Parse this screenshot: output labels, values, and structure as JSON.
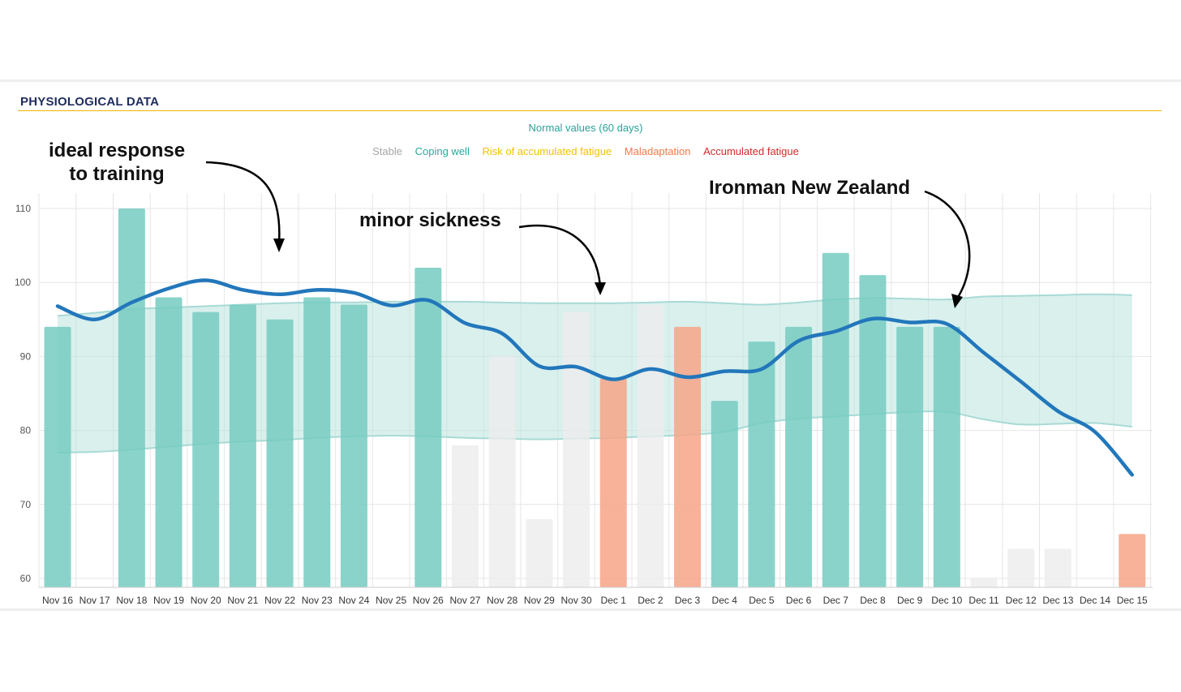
{
  "section": {
    "title": "PHYSIOLOGICAL DATA"
  },
  "normal_label": "Normal values (60 days)",
  "legend": [
    {
      "label": "Stable",
      "color": "#a6a6a6"
    },
    {
      "label": "Coping well",
      "color": "#2aaa9c"
    },
    {
      "label": "Risk of accumulated fatigue",
      "color": "#f2c200"
    },
    {
      "label": "Maladaptation",
      "color": "#ef7a48"
    },
    {
      "label": "Accumulated fatigue",
      "color": "#d42a2a"
    }
  ],
  "annotations": {
    "ideal_line1": "ideal response",
    "ideal_line2": "to training",
    "sickness": "minor sickness",
    "ironman": "Ironman New Zealand"
  },
  "colors": {
    "coping_well": "#76cbc1",
    "stable": "#ececec",
    "maladaptation": "#f6a487",
    "trend": "#2277bb",
    "band": "#b9e3df"
  },
  "chart_data": {
    "type": "bar",
    "categories": [
      "Nov 16",
      "Nov 17",
      "Nov 18",
      "Nov 19",
      "Nov 20",
      "Nov 21",
      "Nov 22",
      "Nov 23",
      "Nov 24",
      "Nov 25",
      "Nov 26",
      "Nov 27",
      "Nov 28",
      "Nov 29",
      "Nov 30",
      "Dec 1",
      "Dec 2",
      "Dec 3",
      "Dec 4",
      "Dec 5",
      "Dec 6",
      "Dec 7",
      "Dec 8",
      "Dec 9",
      "Dec 10",
      "Dec 11",
      "Dec 12",
      "Dec 13",
      "Dec 14",
      "Dec 15"
    ],
    "yticks": [
      60,
      70,
      80,
      90,
      100,
      110
    ],
    "ylim": [
      59,
      113
    ],
    "grid": true,
    "bars": [
      {
        "value": 94,
        "status": "coping_well"
      },
      {
        "value": null,
        "status": null
      },
      {
        "value": 110,
        "status": "coping_well"
      },
      {
        "value": 98,
        "status": "coping_well"
      },
      {
        "value": 96,
        "status": "coping_well"
      },
      {
        "value": 97,
        "status": "coping_well"
      },
      {
        "value": 95,
        "status": "coping_well"
      },
      {
        "value": 98,
        "status": "coping_well"
      },
      {
        "value": 97,
        "status": "coping_well"
      },
      {
        "value": null,
        "status": null
      },
      {
        "value": 102,
        "status": "coping_well"
      },
      {
        "value": 78,
        "status": "stable"
      },
      {
        "value": 90,
        "status": "stable"
      },
      {
        "value": 68,
        "status": "stable"
      },
      {
        "value": 96,
        "status": "stable"
      },
      {
        "value": 87,
        "status": "maladaptation"
      },
      {
        "value": 97,
        "status": "stable"
      },
      {
        "value": 94,
        "status": "maladaptation"
      },
      {
        "value": 84,
        "status": "coping_well"
      },
      {
        "value": 92,
        "status": "coping_well"
      },
      {
        "value": 94,
        "status": "coping_well"
      },
      {
        "value": 104,
        "status": "coping_well"
      },
      {
        "value": 101,
        "status": "coping_well"
      },
      {
        "value": 94,
        "status": "coping_well"
      },
      {
        "value": 94,
        "status": "coping_well"
      },
      {
        "value": 60,
        "status": "stable"
      },
      {
        "value": 64,
        "status": "stable"
      },
      {
        "value": 64,
        "status": "stable"
      },
      {
        "value": null,
        "status": null
      },
      {
        "value": 66,
        "status": "maladaptation"
      }
    ],
    "trend_line": [
      96.8,
      95.0,
      97.3,
      99.2,
      100.3,
      99.0,
      98.4,
      99.0,
      98.6,
      96.9,
      97.6,
      94.5,
      93.1,
      88.7,
      88.6,
      86.9,
      88.3,
      87.2,
      88.0,
      88.3,
      92.1,
      93.4,
      95.1,
      94.6,
      94.4,
      90.5,
      86.6,
      82.6,
      79.8,
      74.0
    ],
    "normal_band": {
      "upper": [
        95.5,
        95.9,
        96.4,
        96.6,
        96.8,
        97.0,
        97.2,
        97.3,
        97.3,
        97.4,
        97.4,
        97.4,
        97.3,
        97.2,
        97.2,
        97.2,
        97.3,
        97.4,
        97.2,
        97.0,
        97.3,
        97.7,
        97.9,
        97.8,
        97.7,
        98.1,
        98.2,
        98.3,
        98.4,
        98.3
      ],
      "lower": [
        77.0,
        77.1,
        77.4,
        77.8,
        78.2,
        78.5,
        78.7,
        79.0,
        79.2,
        79.3,
        79.2,
        79.0,
        78.9,
        78.8,
        78.9,
        79.0,
        79.2,
        79.4,
        79.8,
        81.0,
        81.6,
        81.9,
        82.2,
        82.5,
        82.5,
        81.5,
        80.8,
        80.9,
        81.0,
        80.5
      ]
    }
  }
}
